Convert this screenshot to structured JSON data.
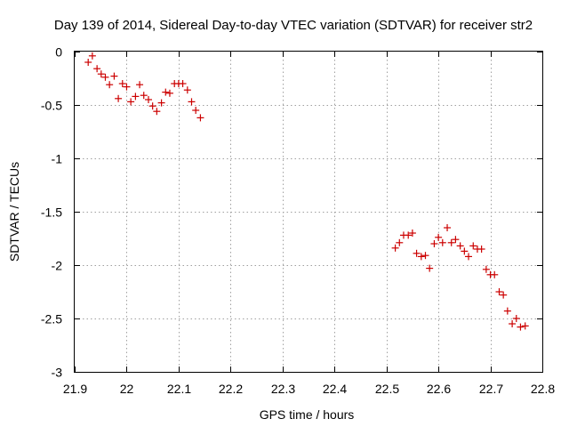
{
  "chart_data": {
    "type": "scatter",
    "title": "Day 139 of 2014, Sidereal Day-to-day VTEC variation (SDTVAR) for receiver str2",
    "xlabel": "GPS time / hours",
    "ylabel": "SDTVAR / TECUs",
    "xlim": [
      21.9,
      22.8
    ],
    "ylim": [
      -3,
      0
    ],
    "x_ticks": [
      21.9,
      22.0,
      22.1,
      22.2,
      22.3,
      22.4,
      22.5,
      22.6,
      22.7,
      22.8
    ],
    "x_tick_labels": [
      "21.9",
      "22",
      "22.1",
      "22.2",
      "22.3",
      "22.4",
      "22.5",
      "22.6",
      "22.7",
      "22.8"
    ],
    "y_ticks": [
      0,
      -0.5,
      -1,
      -1.5,
      -2,
      -2.5,
      -3
    ],
    "y_tick_labels": [
      "0",
      "-0.5",
      "-1",
      "-1.5",
      "-2",
      "-2.5",
      "-3"
    ],
    "grid": true,
    "marker": "+",
    "color": "#cc0000",
    "series": [
      {
        "name": "str2",
        "x": [
          21.926,
          21.934,
          21.943,
          21.951,
          21.959,
          21.967,
          21.976,
          21.984,
          21.992,
          22.0,
          22.008,
          22.017,
          22.025,
          22.033,
          22.042,
          22.05,
          22.058,
          22.067,
          22.075,
          22.083,
          22.092,
          22.1,
          22.108,
          22.117,
          22.125,
          22.133,
          22.142,
          22.517,
          22.525,
          22.533,
          22.542,
          22.55,
          22.558,
          22.567,
          22.575,
          22.583,
          22.592,
          22.6,
          22.608,
          22.617,
          22.625,
          22.633,
          22.642,
          22.65,
          22.658,
          22.667,
          22.675,
          22.683,
          22.692,
          22.7,
          22.708,
          22.717,
          22.725,
          22.733,
          22.742,
          22.75,
          22.758,
          22.767
        ],
        "y": [
          -0.1,
          -0.04,
          -0.16,
          -0.21,
          -0.24,
          -0.31,
          -0.23,
          -0.44,
          -0.3,
          -0.33,
          -0.47,
          -0.42,
          -0.31,
          -0.41,
          -0.45,
          -0.51,
          -0.56,
          -0.48,
          -0.38,
          -0.39,
          -0.3,
          -0.3,
          -0.3,
          -0.36,
          -0.47,
          -0.55,
          -0.62,
          -1.84,
          -1.79,
          -1.72,
          -1.72,
          -1.7,
          -1.89,
          -1.92,
          -1.91,
          -2.03,
          -1.8,
          -1.74,
          -1.79,
          -1.65,
          -1.79,
          -1.76,
          -1.82,
          -1.87,
          -1.92,
          -1.82,
          -1.85,
          -1.85,
          -2.04,
          -2.09,
          -2.09,
          -2.25,
          -2.28,
          -2.43,
          -2.55,
          -2.5,
          -2.58,
          -2.57
        ]
      }
    ]
  }
}
